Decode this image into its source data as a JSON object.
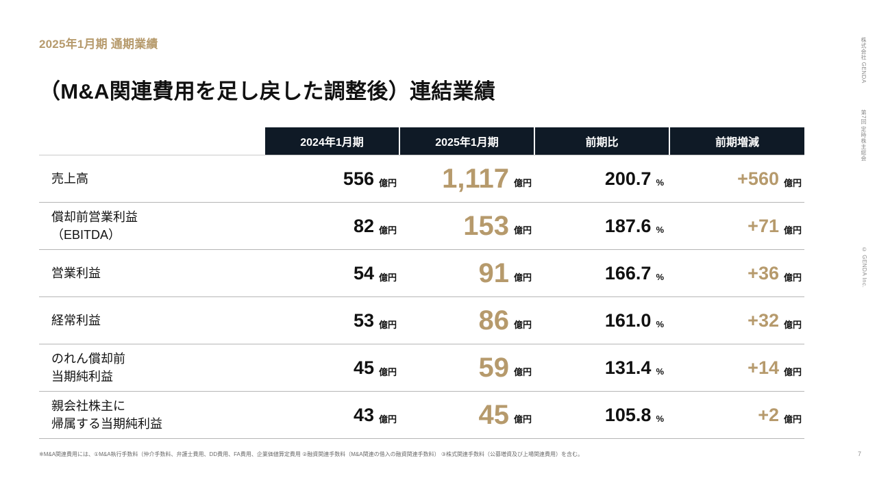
{
  "header": {
    "kicker": "2025年1月期 通期業績",
    "title": "（M&A関連費用を足し戻した調整後）連結業績"
  },
  "side_text": {
    "company": "株式会社 GENDA",
    "meeting": "第7回 定時株主総会",
    "copyright": "© GENDA Inc."
  },
  "table": {
    "columns": [
      "2024年1月期",
      "2025年1月期",
      "前期比",
      "前期増減"
    ],
    "rows": [
      {
        "label": "売上高",
        "prev": "556",
        "prev_unit": "億円",
        "curr": "1,117",
        "curr_unit": "億円",
        "ratio": "200.7",
        "ratio_unit": "%",
        "diff": "+560",
        "diff_unit": "億円"
      },
      {
        "label": "償却前営業利益\n（EBITDA）",
        "prev": "82",
        "prev_unit": "億円",
        "curr": "153",
        "curr_unit": "億円",
        "ratio": "187.6",
        "ratio_unit": "%",
        "diff": "+71",
        "diff_unit": "億円"
      },
      {
        "label": "営業利益",
        "prev": "54",
        "prev_unit": "億円",
        "curr": "91",
        "curr_unit": "億円",
        "ratio": "166.7",
        "ratio_unit": "%",
        "diff": "+36",
        "diff_unit": "億円"
      },
      {
        "label": "経常利益",
        "prev": "53",
        "prev_unit": "億円",
        "curr": "86",
        "curr_unit": "億円",
        "ratio": "161.0",
        "ratio_unit": "%",
        "diff": "+32",
        "diff_unit": "億円"
      },
      {
        "label": "のれん償却前\n当期純利益",
        "prev": "45",
        "prev_unit": "億円",
        "curr": "59",
        "curr_unit": "億円",
        "ratio": "131.4",
        "ratio_unit": "%",
        "diff": "+14",
        "diff_unit": "億円"
      },
      {
        "label": "親会社株主に\n帰属する当期純利益",
        "prev": "43",
        "prev_unit": "億円",
        "curr": "45",
        "curr_unit": "億円",
        "ratio": "105.8",
        "ratio_unit": "%",
        "diff": "+2",
        "diff_unit": "億円"
      }
    ]
  },
  "footnote": "※M&A関連費用には、①M&A執行手数料（仲介手数料、弁護士費用、DD費用、FA費用、企業価値算定費用 ②融資関連手数料（M&A関連の借入の融資関連手数料） ③株式関連手数料（公募増資及び上場関連費用）を含む。",
  "page_number": "7",
  "colors": {
    "accent_gold": "#b69a6c",
    "header_navy": "#0f1a26",
    "text": "#111111"
  }
}
